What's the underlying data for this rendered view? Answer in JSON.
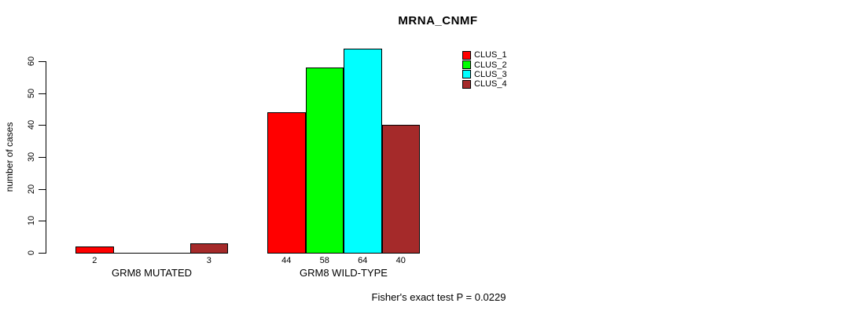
{
  "chart_data": {
    "type": "bar",
    "title": "MRNA_CNMF",
    "ylabel": "number of cases",
    "xlabel": "",
    "ylim": [
      0,
      60
    ],
    "yticks": [
      0,
      10,
      20,
      30,
      40,
      50,
      60
    ],
    "grid": false,
    "legend_position": "top-right",
    "series": [
      {
        "name": "CLUS_1",
        "color": "#FF0000"
      },
      {
        "name": "CLUS_2",
        "color": "#00FF00"
      },
      {
        "name": "CLUS_3",
        "color": "#00FFFF"
      },
      {
        "name": "CLUS_4",
        "color": "#A52A2A"
      }
    ],
    "groups": [
      {
        "label": "GRM8 MUTATED",
        "values": [
          2,
          0,
          0,
          3
        ]
      },
      {
        "label": "GRM8 WILD-TYPE",
        "values": [
          44,
          58,
          64,
          40
        ]
      }
    ],
    "bar_value_labels_visible_when_nonzero": true,
    "footer": "Fisher's exact test P = 0.0229"
  }
}
